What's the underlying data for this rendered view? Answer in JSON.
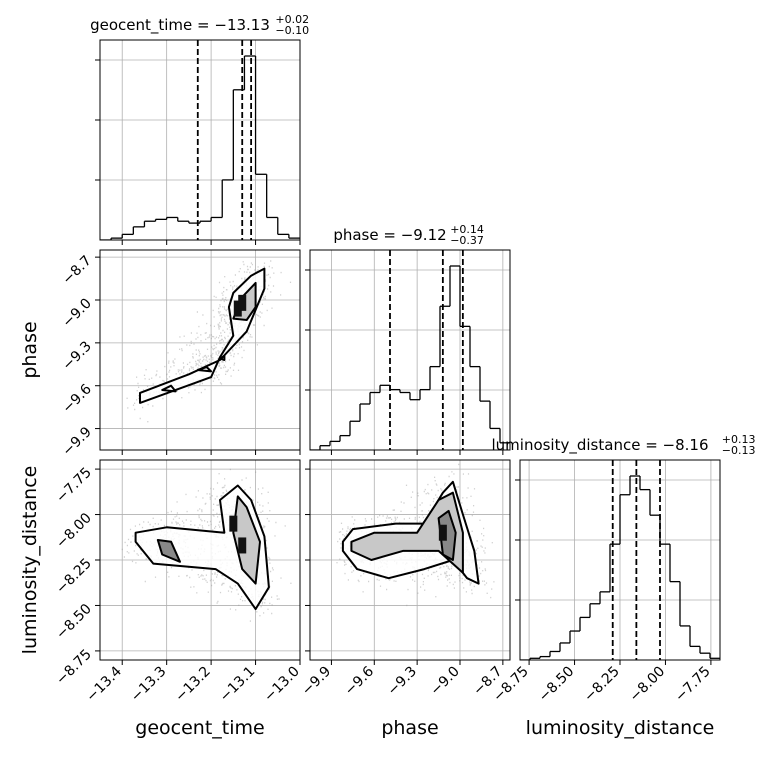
{
  "chart_data": {
    "type": "corner",
    "parameters": [
      "geocent_time",
      "phase",
      "luminosity_distance"
    ],
    "titles": [
      {
        "text": "geocent_time = −13.13",
        "sup": "+0.02",
        "sub": "−0.10"
      },
      {
        "text": "phase = −9.12",
        "sup": "+0.14",
        "sub": "−0.37"
      },
      {
        "text": "luminosity_distance = −8.16",
        "sup": "+0.13",
        "sub": "−0.13"
      }
    ],
    "axis_labels": {
      "x": [
        "geocent_time",
        "phase",
        "luminosity_distance"
      ],
      "y": [
        "phase",
        "luminosity_distance"
      ]
    },
    "ranges": [
      [
        -13.45,
        -13.0
      ],
      [
        -10.05,
        -8.65
      ],
      [
        -8.8,
        -7.7
      ]
    ],
    "ticks": {
      "geocent_time": [
        {
          "v": -13.4,
          "label": "−13.4"
        },
        {
          "v": -13.3,
          "label": "−13.3"
        },
        {
          "v": -13.2,
          "label": "−13.2"
        },
        {
          "v": -13.1,
          "label": "−13.1"
        },
        {
          "v": -13.0,
          "label": "−13.0"
        }
      ],
      "phase": [
        {
          "v": -9.9,
          "label": "−9.9"
        },
        {
          "v": -9.6,
          "label": "−9.6"
        },
        {
          "v": -9.3,
          "label": "−9.3"
        },
        {
          "v": -9.0,
          "label": "−9.0"
        },
        {
          "v": -8.7,
          "label": "−8.7"
        }
      ],
      "luminosity_distance": [
        {
          "v": -8.75,
          "label": "−8.75"
        },
        {
          "v": -8.5,
          "label": "−8.50"
        },
        {
          "v": -8.25,
          "label": "−8.25"
        },
        {
          "v": -8.0,
          "label": "−8.00"
        },
        {
          "v": -7.75,
          "label": "−7.75"
        }
      ]
    },
    "quantiles": [
      [
        -13.23,
        -13.13,
        -13.11
      ],
      [
        -9.49,
        -9.12,
        -8.98
      ],
      [
        -8.29,
        -8.16,
        -8.03
      ]
    ],
    "histograms": [
      {
        "param": "geocent_time",
        "bin_edges": [
          -13.45,
          -13.425,
          -13.4,
          -13.375,
          -13.35,
          -13.325,
          -13.3,
          -13.275,
          -13.25,
          -13.225,
          -13.2,
          -13.175,
          -13.15,
          -13.125,
          -13.1,
          -13.075,
          -13.05,
          -13.025,
          -13.0
        ],
        "counts": [
          0,
          1,
          3,
          7,
          10,
          11,
          12,
          10,
          9,
          10,
          12,
          32,
          80,
          98,
          35,
          12,
          3,
          1
        ]
      },
      {
        "param": "phase",
        "bin_edges": [
          -10.05,
          -9.98,
          -9.91,
          -9.84,
          -9.77,
          -9.7,
          -9.63,
          -9.56,
          -9.49,
          -9.42,
          -9.35,
          -9.28,
          -9.21,
          -9.14,
          -9.07,
          -9.0,
          -8.93,
          -8.86,
          -8.79,
          -8.72,
          -8.65
        ],
        "counts": [
          0,
          3,
          6,
          10,
          20,
          32,
          40,
          45,
          42,
          40,
          35,
          42,
          58,
          100,
          128,
          86,
          58,
          34,
          15,
          5
        ]
      },
      {
        "param": "luminosity_distance",
        "bin_edges": [
          -8.8,
          -8.745,
          -8.69,
          -8.635,
          -8.58,
          -8.525,
          -8.47,
          -8.415,
          -8.36,
          -8.305,
          -8.25,
          -8.195,
          -8.14,
          -8.085,
          -8.03,
          -7.975,
          -7.92,
          -7.865,
          -7.81,
          -7.755,
          -7.7
        ],
        "counts": [
          0,
          1,
          2,
          5,
          10,
          17,
          25,
          33,
          40,
          68,
          97,
          108,
          100,
          85,
          68,
          46,
          20,
          8,
          4,
          1
        ]
      }
    ],
    "contours": [
      {
        "x": "geocent_time",
        "y": "phase",
        "levels": [
          [
            [
              -13.36,
              -9.72
            ],
            [
              -13.2,
              -9.54
            ],
            [
              -13.18,
              -9.4
            ],
            [
              -13.15,
              -9.25
            ],
            [
              -13.16,
              -9.05
            ],
            [
              -13.15,
              -8.95
            ],
            [
              -13.11,
              -8.83
            ],
            [
              -13.08,
              -8.78
            ],
            [
              -13.08,
              -8.92
            ],
            [
              -13.12,
              -9.22
            ],
            [
              -13.18,
              -9.42
            ],
            [
              -13.25,
              -9.52
            ],
            [
              -13.36,
              -9.65
            ]
          ],
          [
            [
              -13.15,
              -9.13
            ],
            [
              -13.13,
              -8.98
            ],
            [
              -13.1,
              -8.88
            ],
            [
              -13.1,
              -9.05
            ],
            [
              -13.12,
              -9.14
            ]
          ],
          [
            [
              -13.31,
              -9.63
            ],
            [
              -13.28,
              -9.64
            ],
            [
              -13.29,
              -9.6
            ]
          ],
          [
            [
              -13.23,
              -9.49
            ],
            [
              -13.2,
              -9.5
            ],
            [
              -13.21,
              -9.47
            ]
          ],
          [
            [
              -13.18,
              -9.41
            ],
            [
              -13.17,
              -9.42
            ],
            [
              -13.17,
              -9.39
            ]
          ]
        ],
        "density_peaks": [
          [
            -13.14,
            -9.06
          ],
          [
            -13.13,
            -9.02
          ]
        ]
      },
      {
        "x": "geocent_time",
        "y": "luminosity_distance",
        "levels": [
          [
            [
              -13.37,
              -8.1
            ],
            [
              -13.3,
              -8.07
            ],
            [
              -13.17,
              -8.1
            ],
            [
              -13.18,
              -7.92
            ],
            [
              -13.14,
              -7.84
            ],
            [
              -13.11,
              -7.92
            ],
            [
              -13.08,
              -8.12
            ],
            [
              -13.07,
              -8.4
            ],
            [
              -13.1,
              -8.52
            ],
            [
              -13.14,
              -8.38
            ],
            [
              -13.19,
              -8.3
            ],
            [
              -13.33,
              -8.27
            ],
            [
              -13.37,
              -8.15
            ]
          ],
          [
            [
              -13.14,
              -7.9
            ],
            [
              -13.12,
              -7.96
            ],
            [
              -13.09,
              -8.15
            ],
            [
              -13.1,
              -8.38
            ],
            [
              -13.13,
              -8.3
            ],
            [
              -13.15,
              -8.1
            ]
          ],
          [
            [
              -13.32,
              -8.14
            ],
            [
              -13.29,
              -8.15
            ],
            [
              -13.27,
              -8.26
            ],
            [
              -13.31,
              -8.22
            ]
          ]
        ],
        "density_peaks": [
          [
            -13.15,
            -8.05
          ],
          [
            -13.13,
            -8.17
          ]
        ]
      },
      {
        "x": "phase",
        "y": "luminosity_distance",
        "levels": [
          [
            [
              -9.82,
              -8.15
            ],
            [
              -9.75,
              -8.08
            ],
            [
              -9.45,
              -8.05
            ],
            [
              -9.25,
              -8.05
            ],
            [
              -9.12,
              -7.88
            ],
            [
              -9.05,
              -7.82
            ],
            [
              -8.98,
              -8.0
            ],
            [
              -8.9,
              -8.2
            ],
            [
              -8.87,
              -8.38
            ],
            [
              -8.95,
              -8.35
            ],
            [
              -9.05,
              -8.25
            ],
            [
              -9.25,
              -8.3
            ],
            [
              -9.5,
              -8.35
            ],
            [
              -9.72,
              -8.3
            ],
            [
              -9.82,
              -8.2
            ]
          ],
          [
            [
              -9.76,
              -8.15
            ],
            [
              -9.6,
              -8.1
            ],
            [
              -9.3,
              -8.1
            ],
            [
              -9.15,
              -7.92
            ],
            [
              -9.05,
              -7.88
            ],
            [
              -8.98,
              -8.1
            ],
            [
              -8.98,
              -8.32
            ],
            [
              -9.15,
              -8.2
            ],
            [
              -9.4,
              -8.2
            ],
            [
              -9.62,
              -8.25
            ],
            [
              -9.76,
              -8.2
            ]
          ],
          [
            [
              -9.15,
              -8.02
            ],
            [
              -9.08,
              -7.98
            ],
            [
              -9.03,
              -8.1
            ],
            [
              -9.05,
              -8.25
            ],
            [
              -9.12,
              -8.22
            ]
          ]
        ],
        "density_peaks": [
          [
            -9.12,
            -8.1
          ]
        ]
      }
    ],
    "grid": true
  }
}
